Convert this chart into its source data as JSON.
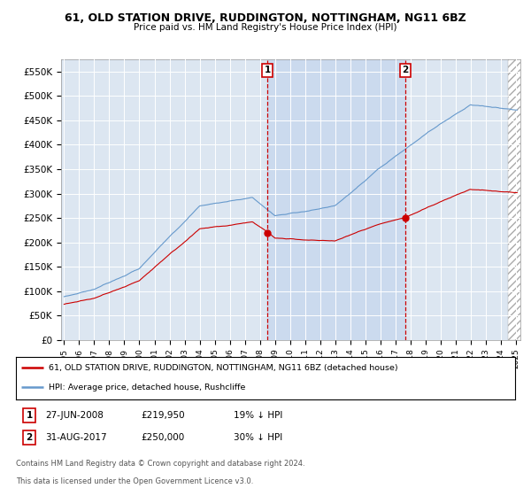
{
  "title": "61, OLD STATION DRIVE, RUDDINGTON, NOTTINGHAM, NG11 6BZ",
  "subtitle": "Price paid vs. HM Land Registry's House Price Index (HPI)",
  "ylim": [
    0,
    575000
  ],
  "yticks": [
    0,
    50000,
    100000,
    150000,
    200000,
    250000,
    300000,
    350000,
    400000,
    450000,
    500000,
    550000
  ],
  "ytick_labels": [
    "£0",
    "£50K",
    "£100K",
    "£150K",
    "£200K",
    "£250K",
    "£300K",
    "£350K",
    "£400K",
    "£450K",
    "£500K",
    "£550K"
  ],
  "background_color": "#ffffff",
  "plot_bg_color": "#dce6f1",
  "grid_color": "#ffffff",
  "hpi_color": "#6699cc",
  "price_color": "#cc0000",
  "shade_color": "#c8d8ee",
  "marker1_date_x": 2008.49,
  "marker1_label": "1",
  "marker1_price": 219950,
  "marker2_date_x": 2017.66,
  "marker2_label": "2",
  "marker2_price": 250000,
  "legend_line1": "61, OLD STATION DRIVE, RUDDINGTON, NOTTINGHAM, NG11 6BZ (detached house)",
  "legend_line2": "HPI: Average price, detached house, Rushcliffe",
  "ann1_label": "1",
  "ann1_date": "27-JUN-2008",
  "ann1_price": "£219,950",
  "ann1_hpi": "19% ↓ HPI",
  "ann2_label": "2",
  "ann2_date": "31-AUG-2017",
  "ann2_price": "£250,000",
  "ann2_hpi": "30% ↓ HPI",
  "footer1": "Contains HM Land Registry data © Crown copyright and database right 2024.",
  "footer2": "This data is licensed under the Open Government Licence v3.0.",
  "xmin": 1995.0,
  "xmax": 2025.0
}
